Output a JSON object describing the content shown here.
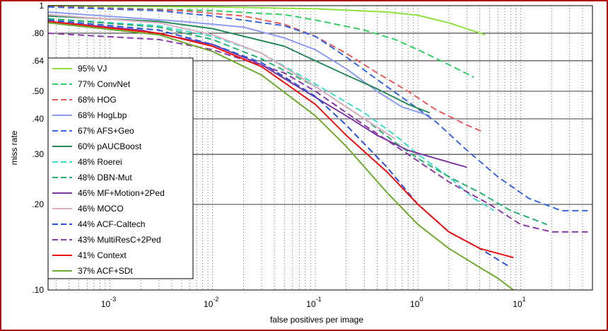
{
  "chart_data": {
    "type": "line",
    "xscale": "log",
    "yscale": "log",
    "xlim": [
      0.00025,
      50
    ],
    "ylim": [
      0.1,
      1
    ],
    "xlabel": "false positives per image",
    "ylabel": "miss rate",
    "grid": true,
    "legend_position": "top-left",
    "x_ticks": [
      {
        "value": 0.001,
        "base": "10",
        "exp": "-3"
      },
      {
        "value": 0.01,
        "base": "10",
        "exp": "-2"
      },
      {
        "value": 0.1,
        "base": "10",
        "exp": "-1"
      },
      {
        "value": 1,
        "base": "10",
        "exp": "0"
      },
      {
        "value": 10,
        "base": "10",
        "exp": "1"
      }
    ],
    "y_ticks": [
      {
        "value": 1,
        "label": "1"
      },
      {
        "value": 0.8,
        "label": ".80"
      },
      {
        "value": 0.64,
        "label": ".64"
      },
      {
        "value": 0.5,
        "label": ".50"
      },
      {
        "value": 0.4,
        "label": ".40"
      },
      {
        "value": 0.3,
        "label": ".30"
      },
      {
        "value": 0.2,
        "label": ".20"
      },
      {
        "value": 0.1,
        "label": ".10"
      }
    ],
    "series": [
      {
        "name": "95% VJ",
        "color": "#90e040",
        "dash": "solid",
        "points": [
          [
            0.00025,
            1
          ],
          [
            0.01,
            0.99
          ],
          [
            0.1,
            0.975
          ],
          [
            0.5,
            0.95
          ],
          [
            1,
            0.925
          ],
          [
            2,
            0.87
          ],
          [
            4.5,
            0.79
          ]
        ]
      },
      {
        "name": "77% ConvNet",
        "color": "#33cc66",
        "dash": "dashed",
        "points": [
          [
            0.00025,
            0.995
          ],
          [
            0.01,
            0.96
          ],
          [
            0.05,
            0.93
          ],
          [
            0.1,
            0.89
          ],
          [
            0.3,
            0.82
          ],
          [
            0.6,
            0.76
          ],
          [
            1,
            0.7
          ],
          [
            2,
            0.62
          ],
          [
            3.5,
            0.56
          ]
        ]
      },
      {
        "name": "68% HOG",
        "color": "#e85a5a",
        "dash": "dashed",
        "points": [
          [
            0.00025,
            0.995
          ],
          [
            0.005,
            0.96
          ],
          [
            0.02,
            0.92
          ],
          [
            0.05,
            0.86
          ],
          [
            0.1,
            0.78
          ],
          [
            0.2,
            0.68
          ],
          [
            0.4,
            0.58
          ],
          [
            0.8,
            0.5
          ],
          [
            1.5,
            0.43
          ],
          [
            3,
            0.38
          ],
          [
            4.3,
            0.36
          ]
        ]
      },
      {
        "name": "68% HogLbp",
        "color": "#8e9cf0",
        "dash": "solid",
        "points": [
          [
            0.00025,
            0.95
          ],
          [
            0.005,
            0.88
          ],
          [
            0.02,
            0.84
          ],
          [
            0.05,
            0.77
          ],
          [
            0.1,
            0.7
          ],
          [
            0.2,
            0.6
          ],
          [
            0.4,
            0.5
          ],
          [
            0.7,
            0.44
          ],
          [
            1.3,
            0.41
          ]
        ]
      },
      {
        "name": "67% AFS+Geo",
        "color": "#3a66e0",
        "dash": "dashed",
        "points": [
          [
            0.00025,
            0.99
          ],
          [
            0.003,
            0.96
          ],
          [
            0.01,
            0.92
          ],
          [
            0.05,
            0.85
          ],
          [
            0.1,
            0.78
          ],
          [
            0.2,
            0.66
          ],
          [
            0.4,
            0.55
          ],
          [
            0.8,
            0.46
          ],
          [
            1.5,
            0.39
          ],
          [
            3,
            0.31
          ],
          [
            6,
            0.25
          ],
          [
            12,
            0.21
          ],
          [
            25,
            0.19
          ],
          [
            45,
            0.19
          ]
        ]
      },
      {
        "name": "60% pAUCBoost",
        "color": "#2a8a5c",
        "dash": "solid",
        "points": [
          [
            0.00025,
            0.92
          ],
          [
            0.003,
            0.88
          ],
          [
            0.01,
            0.83
          ],
          [
            0.05,
            0.72
          ],
          [
            0.1,
            0.64
          ],
          [
            0.2,
            0.57
          ],
          [
            0.4,
            0.51
          ],
          [
            0.8,
            0.45
          ],
          [
            1.3,
            0.42
          ]
        ]
      },
      {
        "name": "48% Roerei",
        "color": "#40dccc",
        "dash": "dashed",
        "points": [
          [
            0.00025,
            0.9
          ],
          [
            0.003,
            0.85
          ],
          [
            0.01,
            0.78
          ],
          [
            0.03,
            0.68
          ],
          [
            0.1,
            0.53
          ],
          [
            0.3,
            0.42
          ],
          [
            0.6,
            0.35
          ],
          [
            1,
            0.3
          ],
          [
            2,
            0.25
          ],
          [
            3.5,
            0.21
          ],
          [
            5.5,
            0.19
          ]
        ]
      },
      {
        "name": "48% DBN-Mut",
        "color": "#2ab070",
        "dash": "dashed",
        "points": [
          [
            0.00025,
            0.9
          ],
          [
            0.003,
            0.84
          ],
          [
            0.01,
            0.76
          ],
          [
            0.03,
            0.65
          ],
          [
            0.1,
            0.52
          ],
          [
            0.3,
            0.4
          ],
          [
            0.6,
            0.33
          ],
          [
            1,
            0.29
          ],
          [
            2,
            0.25
          ],
          [
            4,
            0.22
          ],
          [
            8,
            0.19
          ],
          [
            18,
            0.17
          ]
        ]
      },
      {
        "name": "46% MF+Motion+2Ped",
        "color": "#7a3aa0",
        "dash": "solid",
        "points": [
          [
            0.00025,
            0.88
          ],
          [
            0.002,
            0.82
          ],
          [
            0.01,
            0.73
          ],
          [
            0.03,
            0.62
          ],
          [
            0.08,
            0.5
          ],
          [
            0.2,
            0.41
          ],
          [
            0.4,
            0.35
          ],
          [
            0.8,
            0.31
          ],
          [
            1.5,
            0.29
          ],
          [
            3,
            0.27
          ]
        ]
      },
      {
        "name": "46% MOCO",
        "color": "#d8b0c0",
        "dash": "solid",
        "points": [
          [
            0.00025,
            0.93
          ],
          [
            0.003,
            0.87
          ],
          [
            0.01,
            0.79
          ],
          [
            0.03,
            0.68
          ],
          [
            0.1,
            0.52
          ],
          [
            0.3,
            0.4
          ],
          [
            0.6,
            0.34
          ]
        ]
      },
      {
        "name": "44% ACF-Caltech",
        "color": "#2b4fd8",
        "dash": "dashed",
        "points": [
          [
            0.00025,
            0.89
          ],
          [
            0.003,
            0.82
          ],
          [
            0.01,
            0.73
          ],
          [
            0.03,
            0.63
          ],
          [
            0.1,
            0.48
          ],
          [
            0.2,
            0.38
          ],
          [
            0.5,
            0.27
          ],
          [
            1,
            0.2
          ],
          [
            2,
            0.16
          ],
          [
            4,
            0.14
          ],
          [
            8,
            0.12
          ]
        ]
      },
      {
        "name": "43% MultiResC+2Ped",
        "color": "#8a3aa8",
        "dash": "dashed",
        "points": [
          [
            0.00025,
            0.8
          ],
          [
            0.003,
            0.76
          ],
          [
            0.01,
            0.7
          ],
          [
            0.05,
            0.58
          ],
          [
            0.1,
            0.5
          ],
          [
            0.3,
            0.38
          ],
          [
            0.8,
            0.3
          ],
          [
            2,
            0.24
          ],
          [
            5,
            0.2
          ],
          [
            10,
            0.17
          ],
          [
            20,
            0.16
          ],
          [
            45,
            0.16
          ]
        ]
      },
      {
        "name": "41% Context",
        "color": "#ee1111",
        "dash": "solid",
        "points": [
          [
            0.00025,
            0.88
          ],
          [
            0.003,
            0.8
          ],
          [
            0.01,
            0.72
          ],
          [
            0.03,
            0.61
          ],
          [
            0.1,
            0.45
          ],
          [
            0.2,
            0.35
          ],
          [
            0.5,
            0.26
          ],
          [
            1,
            0.2
          ],
          [
            2,
            0.16
          ],
          [
            4,
            0.14
          ],
          [
            8.5,
            0.13
          ]
        ]
      },
      {
        "name": "37% ACF+SDt",
        "color": "#70aa30",
        "dash": "solid",
        "points": [
          [
            0.00025,
            0.87
          ],
          [
            0.003,
            0.79
          ],
          [
            0.01,
            0.69
          ],
          [
            0.03,
            0.57
          ],
          [
            0.1,
            0.41
          ],
          [
            0.2,
            0.32
          ],
          [
            0.5,
            0.22
          ],
          [
            1,
            0.17
          ],
          [
            2,
            0.14
          ],
          [
            4,
            0.12
          ],
          [
            6,
            0.11
          ],
          [
            8.5,
            0.1
          ]
        ]
      }
    ]
  }
}
